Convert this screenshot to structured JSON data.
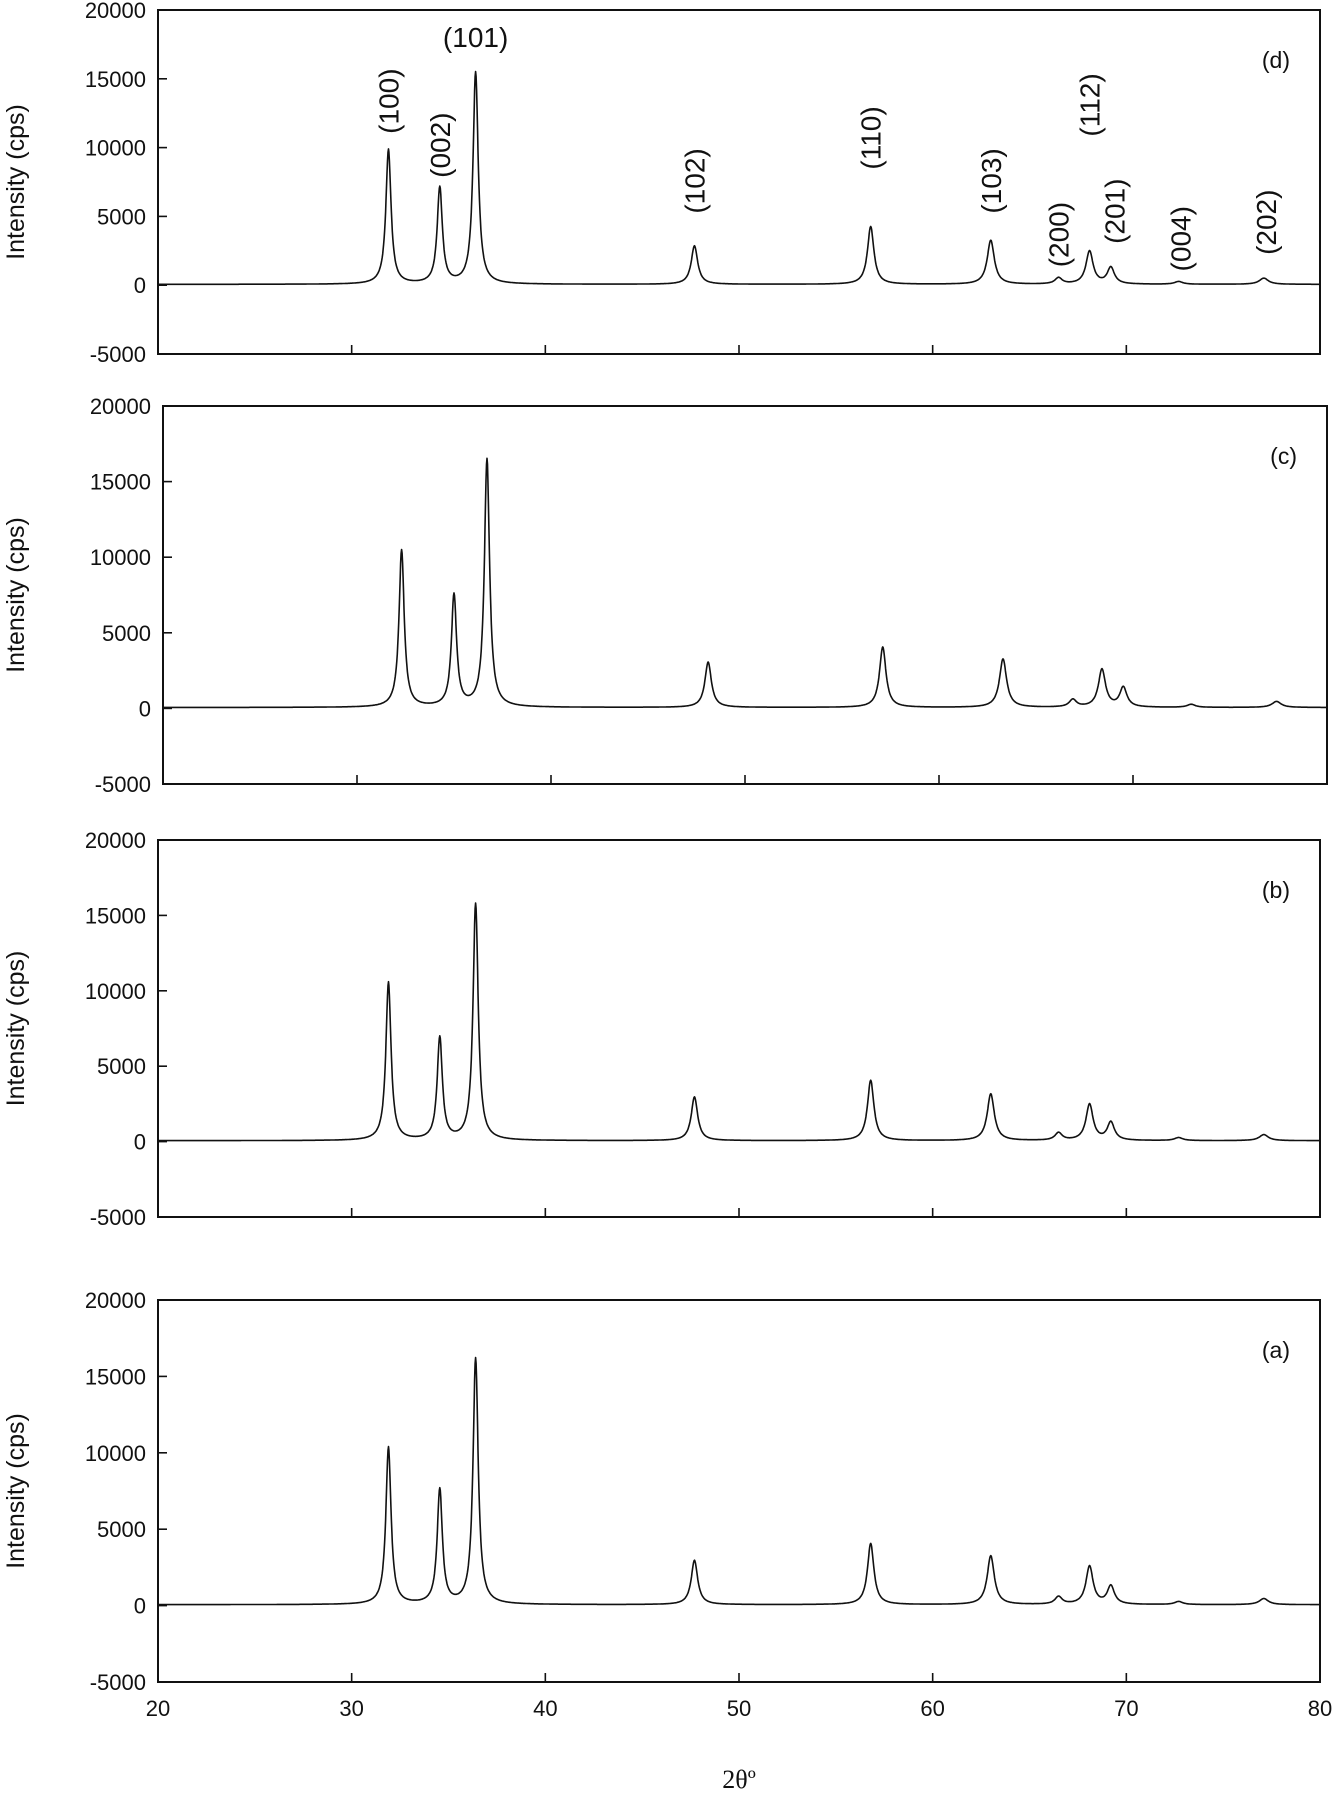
{
  "chart_data": [
    {
      "type": "line",
      "panel_label": "(d)",
      "ylabel": "Intensity (cps)",
      "xlim": [
        20,
        80
      ],
      "ylim": [
        -5000,
        20000
      ],
      "yticks": [
        "-5000",
        "0",
        "5000",
        "10000",
        "15000",
        "20000"
      ],
      "xtick_labels_shown": false,
      "peaks": [
        {
          "x": 31.9,
          "y": 9800,
          "w": 0.16
        },
        {
          "x": 34.55,
          "y": 7000,
          "w": 0.16
        },
        {
          "x": 36.4,
          "y": 15400,
          "w": 0.16
        },
        {
          "x": 47.7,
          "y": 2800,
          "w": 0.2
        },
        {
          "x": 56.8,
          "y": 4200,
          "w": 0.2
        },
        {
          "x": 63.0,
          "y": 3200,
          "w": 0.22
        },
        {
          "x": 66.5,
          "y": 450,
          "w": 0.22
        },
        {
          "x": 68.1,
          "y": 2400,
          "w": 0.22
        },
        {
          "x": 69.2,
          "y": 1200,
          "w": 0.22
        },
        {
          "x": 72.7,
          "y": 200,
          "w": 0.25
        },
        {
          "x": 77.1,
          "y": 450,
          "w": 0.28
        }
      ],
      "annotations": [
        {
          "text": "(100)",
          "x": 31.9,
          "y": 11000,
          "rotated": true
        },
        {
          "text": "(002)",
          "x": 34.55,
          "y": 7800,
          "rotated": true
        },
        {
          "text": "(101)",
          "x": 36.4,
          "y": 17300,
          "rotated": false
        },
        {
          "text": "(102)",
          "x": 47.7,
          "y": 5200,
          "rotated": true
        },
        {
          "text": "(110)",
          "x": 56.8,
          "y": 8400,
          "rotated": true
        },
        {
          "text": "(103)",
          "x": 63.0,
          "y": 5200,
          "rotated": true
        },
        {
          "text": "(200)",
          "x": 66.5,
          "y": 1300,
          "rotated": true
        },
        {
          "text": "(112)",
          "x": 68.1,
          "y": 10800,
          "rotated": true
        },
        {
          "text": "(201)",
          "x": 69.4,
          "y": 3000,
          "rotated": true
        },
        {
          "text": "(004)",
          "x": 72.8,
          "y": 1000,
          "rotated": true
        },
        {
          "text": "(202)",
          "x": 77.2,
          "y": 2200,
          "rotated": true
        }
      ]
    },
    {
      "type": "line",
      "panel_label": "(c)",
      "ylabel": "Intensity (cps)",
      "xlim": [
        20,
        80
      ],
      "ylim": [
        -5000,
        20000
      ],
      "yticks": [
        "-5000",
        "0",
        "5000",
        "10000",
        "15000",
        "20000"
      ],
      "xtick_labels_shown": false,
      "peaks": [
        {
          "x": 32.3,
          "y": 10400,
          "w": 0.16
        },
        {
          "x": 35.0,
          "y": 7400,
          "w": 0.16
        },
        {
          "x": 36.7,
          "y": 16400,
          "w": 0.16
        },
        {
          "x": 48.1,
          "y": 3000,
          "w": 0.2
        },
        {
          "x": 57.1,
          "y": 4000,
          "w": 0.2
        },
        {
          "x": 63.3,
          "y": 3200,
          "w": 0.22
        },
        {
          "x": 66.9,
          "y": 500,
          "w": 0.22
        },
        {
          "x": 68.4,
          "y": 2500,
          "w": 0.22
        },
        {
          "x": 69.5,
          "y": 1300,
          "w": 0.22
        },
        {
          "x": 73.0,
          "y": 200,
          "w": 0.25
        },
        {
          "x": 77.4,
          "y": 400,
          "w": 0.28
        }
      ],
      "annotations": []
    },
    {
      "type": "line",
      "panel_label": "(b)",
      "ylabel": "Intensity (cps)",
      "xlim": [
        20,
        80
      ],
      "ylim": [
        -5000,
        20000
      ],
      "yticks": [
        "-5000",
        "0",
        "5000",
        "10000",
        "15000",
        "20000"
      ],
      "xtick_labels_shown": false,
      "peaks": [
        {
          "x": 31.9,
          "y": 10500,
          "w": 0.16
        },
        {
          "x": 34.55,
          "y": 6800,
          "w": 0.16
        },
        {
          "x": 36.4,
          "y": 15700,
          "w": 0.16
        },
        {
          "x": 47.7,
          "y": 2900,
          "w": 0.2
        },
        {
          "x": 56.8,
          "y": 4000,
          "w": 0.2
        },
        {
          "x": 63.0,
          "y": 3100,
          "w": 0.22
        },
        {
          "x": 66.5,
          "y": 500,
          "w": 0.22
        },
        {
          "x": 68.1,
          "y": 2400,
          "w": 0.22
        },
        {
          "x": 69.2,
          "y": 1200,
          "w": 0.22
        },
        {
          "x": 72.7,
          "y": 200,
          "w": 0.25
        },
        {
          "x": 77.1,
          "y": 400,
          "w": 0.28
        }
      ],
      "annotations": []
    },
    {
      "type": "line",
      "panel_label": "(a)",
      "ylabel": "Intensity (cps)",
      "xlabel": "2θº",
      "xlim": [
        20,
        80
      ],
      "ylim": [
        -5000,
        20000
      ],
      "yticks": [
        "-5000",
        "0",
        "5000",
        "10000",
        "15000",
        "20000"
      ],
      "xticks": [
        "20",
        "30",
        "40",
        "50",
        "60",
        "70",
        "80"
      ],
      "xtick_labels_shown": true,
      "peaks": [
        {
          "x": 31.9,
          "y": 10300,
          "w": 0.16
        },
        {
          "x": 34.55,
          "y": 7500,
          "w": 0.16
        },
        {
          "x": 36.4,
          "y": 16100,
          "w": 0.16
        },
        {
          "x": 47.7,
          "y": 2900,
          "w": 0.2
        },
        {
          "x": 56.8,
          "y": 4000,
          "w": 0.2
        },
        {
          "x": 63.0,
          "y": 3200,
          "w": 0.22
        },
        {
          "x": 66.5,
          "y": 500,
          "w": 0.22
        },
        {
          "x": 68.1,
          "y": 2500,
          "w": 0.22
        },
        {
          "x": 69.2,
          "y": 1200,
          "w": 0.22
        },
        {
          "x": 72.7,
          "y": 200,
          "w": 0.25
        },
        {
          "x": 77.1,
          "y": 400,
          "w": 0.28
        }
      ],
      "annotations": []
    }
  ]
}
